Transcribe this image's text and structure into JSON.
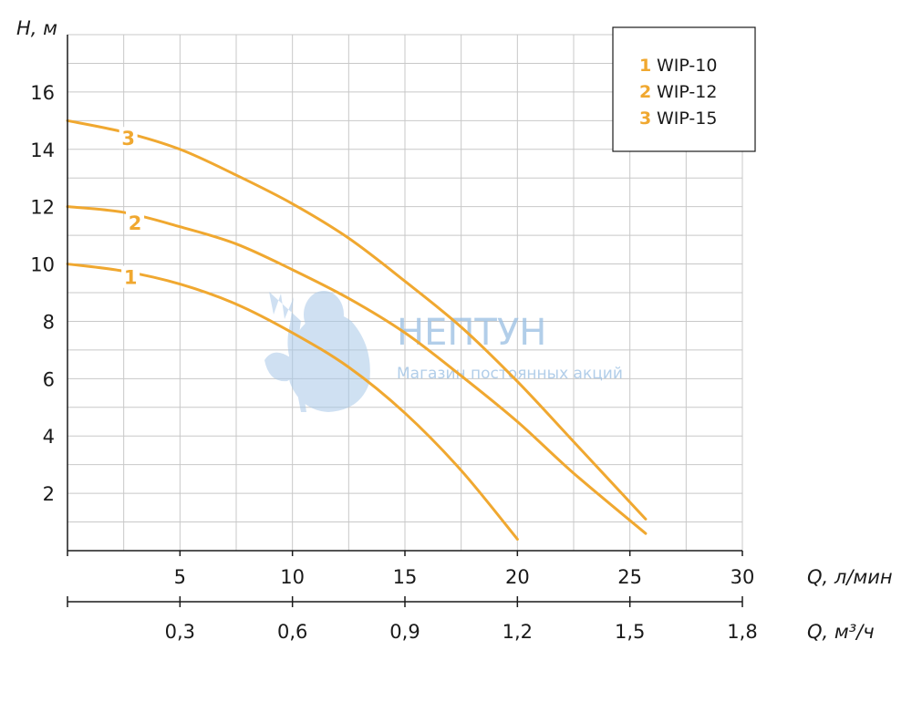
{
  "chart_data": {
    "type": "line",
    "ylabel": "H, м",
    "xlabel": "Q, л/мин",
    "xlabel2": "Q, м³/ч",
    "xlim": [
      0,
      30
    ],
    "ylim": [
      0,
      18
    ],
    "x_ticks": [
      5,
      10,
      15,
      20,
      25,
      30
    ],
    "x2_ticks": [
      "0,3",
      "0,6",
      "0,9",
      "1,2",
      "1,5",
      "1,8"
    ],
    "y_ticks": [
      2,
      4,
      6,
      8,
      10,
      12,
      14,
      16
    ],
    "grid": true,
    "legend_position": "top-right",
    "series": [
      {
        "label": "1",
        "name": "WIP-10",
        "x": [
          0,
          2.5,
          5,
          7.5,
          10,
          12.5,
          15,
          17.5,
          20
        ],
        "y": [
          10,
          9.75,
          9.3,
          8.6,
          7.6,
          6.4,
          4.8,
          2.8,
          0.4
        ]
      },
      {
        "label": "2",
        "name": "WIP-12",
        "x": [
          0,
          2.5,
          5,
          7.5,
          10,
          12.5,
          15,
          17.5,
          20,
          22.5,
          25.7
        ],
        "y": [
          12,
          11.8,
          11.3,
          10.7,
          9.8,
          8.8,
          7.6,
          6.1,
          4.5,
          2.7,
          0.6
        ]
      },
      {
        "label": "3",
        "name": "WIP-15",
        "x": [
          0,
          2.5,
          5,
          7.5,
          10,
          12.5,
          15,
          17.5,
          20,
          22.5,
          25.7
        ],
        "y": [
          15,
          14.6,
          14,
          13.1,
          12.1,
          10.9,
          9.4,
          7.8,
          5.9,
          3.8,
          1.1
        ]
      }
    ],
    "series_color": "#f0a830"
  },
  "watermark": {
    "title": "НЕПТУН",
    "subtitle": "Магазин постоянных акций"
  }
}
